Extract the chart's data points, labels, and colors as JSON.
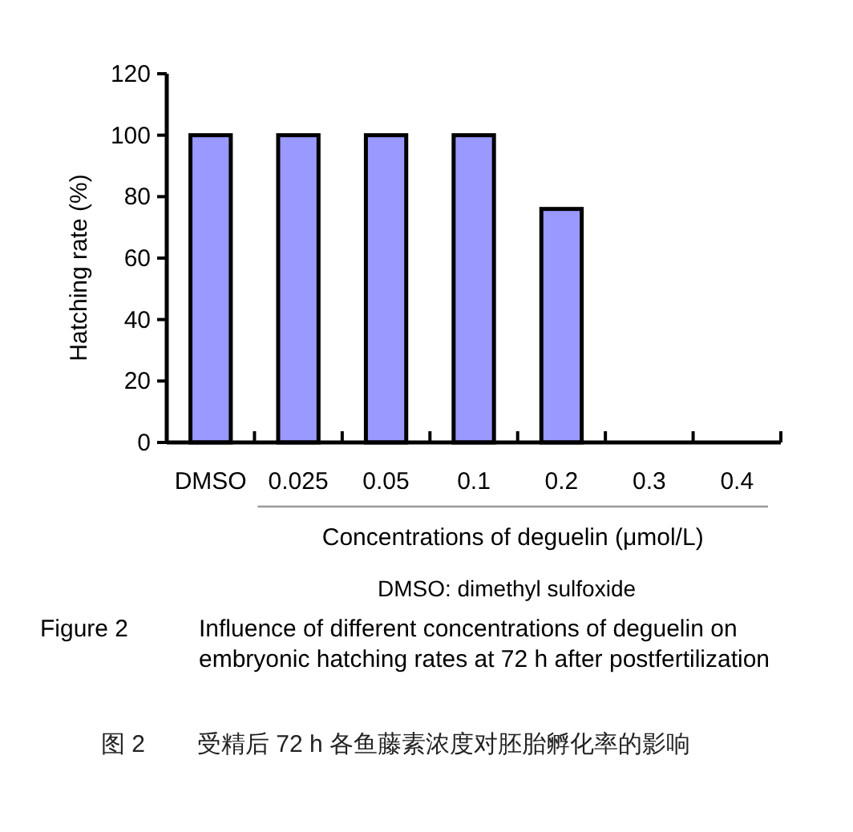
{
  "chart_data": {
    "type": "bar",
    "ylabel": "Hatching rate (%)",
    "xlabel": "Concentrations of deguelin (μmol/L)",
    "categories": [
      "DMSO",
      "0.025",
      "0.05",
      "0.1",
      "0.2",
      "0.3",
      "0.4"
    ],
    "values": [
      100,
      100,
      100,
      100,
      76,
      0,
      0
    ],
    "color": "#9999ff",
    "ylim": [
      0,
      120
    ],
    "yticks": [
      0,
      20,
      40,
      60,
      80,
      100,
      120
    ],
    "grid": false,
    "annotations": [
      "DMSO: dimethyl sulfoxide",
      "Figure 2",
      "Influence of different concentrations of deguelin on embryonic hatching rates at 72 h after postfertilization",
      "图 2",
      "受精后 72 h 各鱼藤素浓度对胚胎孵化率的影响"
    ]
  }
}
